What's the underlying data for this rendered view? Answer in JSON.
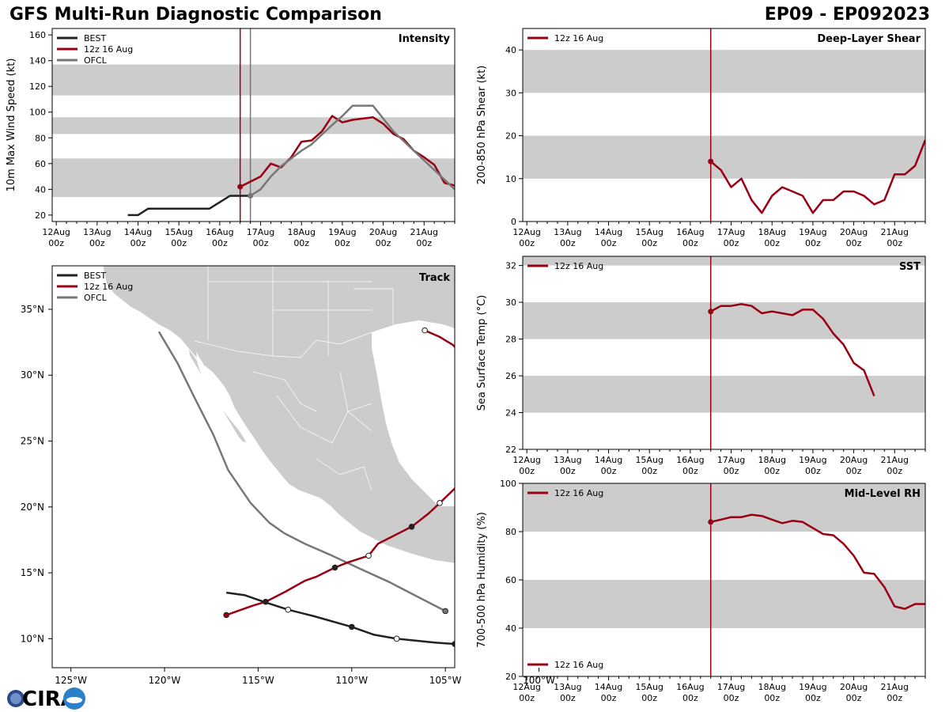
{
  "header": {
    "title_left": "GFS Multi-Run Diagnostic Comparison",
    "title_right": "EP09 - EP092023"
  },
  "logo": {
    "text": "CIRA"
  },
  "colors": {
    "best": "#222222",
    "run": "#990011",
    "ofcl": "#777777",
    "band": "#cccccc",
    "land": "#cccccc",
    "border": "#ffffff"
  },
  "time_axis": {
    "ticks": [
      {
        "top": "12Aug",
        "bot": "00z"
      },
      {
        "top": "13Aug",
        "bot": "00z"
      },
      {
        "top": "14Aug",
        "bot": "00z"
      },
      {
        "top": "15Aug",
        "bot": "00z"
      },
      {
        "top": "16Aug",
        "bot": "00z"
      },
      {
        "top": "17Aug",
        "bot": "00z"
      },
      {
        "top": "18Aug",
        "bot": "00z"
      },
      {
        "top": "19Aug",
        "bot": "00z"
      },
      {
        "top": "20Aug",
        "bot": "00z"
      },
      {
        "top": "21Aug",
        "bot": "00z"
      }
    ],
    "xlim_days": [
      -0.1,
      9.75
    ]
  },
  "chart_data": [
    {
      "id": "intensity",
      "type": "line",
      "title": "Intensity",
      "ylabel": "10m Max Wind Speed (kt)",
      "ylim": [
        15,
        165
      ],
      "yticks": [
        20,
        40,
        60,
        80,
        100,
        120,
        140,
        160
      ],
      "bands": [
        [
          34,
          64
        ],
        [
          83,
          96
        ],
        [
          113,
          137
        ]
      ],
      "vlines": [
        {
          "x": 4.5,
          "series": "run"
        },
        {
          "x": 4.75,
          "series": "ofcl"
        }
      ],
      "legend": [
        "BEST",
        "12z 16 Aug",
        "OFCL"
      ],
      "series": [
        {
          "name": "BEST",
          "key": "best",
          "start_marker": false,
          "x": [
            1.75,
            2,
            2.25,
            2.5,
            2.75,
            3,
            3.25,
            3.5,
            3.75,
            4,
            4.25,
            4.5,
            4.75
          ],
          "y": [
            20,
            20,
            25,
            25,
            25,
            25,
            25,
            25,
            25,
            30,
            35,
            35,
            35
          ]
        },
        {
          "name": "12z 16 Aug",
          "key": "run",
          "start_marker": true,
          "x": [
            4.5,
            4.75,
            5,
            5.25,
            5.5,
            5.75,
            6,
            6.25,
            6.5,
            6.75,
            7,
            7.25,
            7.5,
            7.75,
            8,
            8.25,
            8.5,
            8.75,
            9,
            9.25,
            9.5,
            9.75
          ],
          "y": [
            42,
            46,
            50,
            60,
            57,
            65,
            77,
            78,
            85,
            97,
            92,
            94,
            95,
            96,
            91,
            83,
            79,
            70,
            65,
            59,
            45,
            43
          ]
        },
        {
          "name": "OFCL",
          "key": "ofcl",
          "start_marker": true,
          "x": [
            4.75,
            5,
            5.25,
            5.5,
            6,
            6.25,
            6.75,
            7,
            7.25,
            7.75,
            8,
            8.25,
            8.75,
            9.25,
            9.75
          ],
          "y": [
            35,
            40,
            50,
            58,
            70,
            75,
            90,
            97,
            105,
            105,
            95,
            85,
            70,
            55,
            40
          ]
        }
      ]
    },
    {
      "id": "shear",
      "type": "line",
      "title": "Deep-Layer Shear",
      "ylabel": "200-850 hPa Shear (kt)",
      "ylim": [
        0,
        45
      ],
      "yticks": [
        0,
        10,
        20,
        30,
        40
      ],
      "bands": [
        [
          10,
          20
        ],
        [
          30,
          40
        ]
      ],
      "vlines": [
        {
          "x": 4.5,
          "series": "run"
        }
      ],
      "legend": [
        "12z 16 Aug"
      ],
      "series": [
        {
          "name": "12z 16 Aug",
          "key": "run",
          "start_marker": true,
          "x": [
            4.5,
            4.75,
            5,
            5.25,
            5.5,
            5.75,
            6,
            6.25,
            6.5,
            6.75,
            7,
            7.25,
            7.5,
            7.75,
            8,
            8.25,
            8.5,
            8.75,
            9,
            9.25,
            9.5,
            9.75
          ],
          "y": [
            14,
            12,
            8,
            10,
            5,
            2,
            6,
            8,
            7,
            6,
            2,
            5,
            5,
            7,
            7,
            6,
            4,
            5,
            11,
            11,
            13,
            19
          ]
        }
      ]
    },
    {
      "id": "sst",
      "type": "line",
      "title": "SST",
      "ylabel": "Sea Surface Temp (°C)",
      "ylim": [
        22,
        32.5
      ],
      "yticks": [
        22,
        24,
        26,
        28,
        30,
        32
      ],
      "bands": [
        [
          24,
          26
        ],
        [
          28,
          30
        ],
        [
          32,
          32.5
        ]
      ],
      "vlines": [
        {
          "x": 4.5,
          "series": "run"
        }
      ],
      "legend": [
        "12z 16 Aug"
      ],
      "series": [
        {
          "name": "12z 16 Aug",
          "key": "run",
          "start_marker": true,
          "x": [
            4.5,
            4.75,
            5,
            5.25,
            5.5,
            5.75,
            6,
            6.25,
            6.5,
            6.75,
            7,
            7.25,
            7.5,
            7.75,
            8,
            8.25,
            8.5
          ],
          "y": [
            29.5,
            29.8,
            29.8,
            29.9,
            29.8,
            29.4,
            29.5,
            29.4,
            29.3,
            29.6,
            29.6,
            29.1,
            28.3,
            27.7,
            26.7,
            26.3,
            24.9
          ]
        }
      ]
    },
    {
      "id": "rh",
      "type": "line",
      "title": "Mid-Level RH",
      "ylabel": "700-500 hPa Humidity (%)",
      "ylim": [
        20,
        100
      ],
      "yticks": [
        20,
        40,
        60,
        80,
        100
      ],
      "bands": [
        [
          40,
          60
        ],
        [
          80,
          100
        ]
      ],
      "vlines": [
        {
          "x": 4.5,
          "series": "run"
        }
      ],
      "legend": [
        "12z 16 Aug"
      ],
      "series": [
        {
          "name": "12z 16 Aug",
          "key": "run",
          "start_marker": true,
          "x": [
            4.5,
            4.75,
            5,
            5.25,
            5.5,
            5.75,
            6,
            6.25,
            6.5,
            6.75,
            7,
            7.25,
            7.5,
            7.75,
            8,
            8.25,
            8.5,
            8.75,
            9,
            9.25,
            9.5,
            9.75
          ],
          "y": [
            84,
            85,
            86,
            86,
            87,
            86.5,
            85,
            83.5,
            84.5,
            84,
            81.5,
            79,
            78.5,
            75,
            70,
            63,
            62.5,
            57,
            49,
            48,
            50,
            50
          ]
        }
      ]
    },
    {
      "id": "track",
      "type": "map",
      "title": "Track",
      "xlim": [
        -126,
        -104.5
      ],
      "ylim": [
        7.8,
        38.3
      ],
      "xticks": [
        -125,
        -120,
        -115,
        -110,
        -105,
        -100
      ],
      "xtick_labels": [
        "125°W",
        "120°W",
        "115°W",
        "110°W",
        "105°W",
        "100°W"
      ],
      "yticks": [
        10,
        15,
        20,
        25,
        30,
        35
      ],
      "ytick_labels": [
        "10°N",
        "15°N",
        "20°N",
        "25°N",
        "30°N",
        "35°N"
      ],
      "legend": [
        "BEST",
        "12z 16 Aug",
        "OFCL"
      ],
      "series": [
        {
          "name": "BEST",
          "key": "best",
          "lon": [
            -104.5,
            -105.5,
            -107.6,
            -108.8,
            -110,
            -112,
            -113.4,
            -114.7,
            -115.7,
            -116.7
          ],
          "lat": [
            9.6,
            9.7,
            10.0,
            10.3,
            10.9,
            11.7,
            12.2,
            12.8,
            13.3,
            13.5
          ],
          "markers": [
            {
              "i": 0,
              "fill": true
            },
            {
              "i": 2,
              "fill": false
            },
            {
              "i": 4,
              "fill": true
            },
            {
              "i": 6,
              "fill": false
            }
          ]
        },
        {
          "name": "12z 16 Aug",
          "key": "run",
          "lon": [
            -116.7,
            -115.3,
            -114.6,
            -113.5,
            -112.5,
            -111.9,
            -110.9,
            -110.2,
            -109.1,
            -108.6,
            -106.8,
            -105.9,
            -105.3,
            -104.5,
            -103.6,
            -102.9,
            -102.6,
            -102.3,
            -102.4,
            -102.8,
            -102.9,
            -103.2,
            -103.4,
            -103.3,
            -103.7,
            -104.2,
            -104.6,
            -105.3,
            -106.1
          ],
          "lat": [
            11.8,
            12.5,
            12.8,
            13.6,
            14.4,
            14.7,
            15.4,
            15.8,
            16.3,
            17.2,
            18.5,
            19.5,
            20.3,
            21.4,
            22.5,
            23.7,
            24.9,
            25.8,
            26.4,
            27.3,
            28.1,
            29.1,
            29.7,
            30.3,
            31.0,
            31.7,
            32.3,
            32.9,
            33.4
          ],
          "markers": [
            {
              "i": 0,
              "fill": true
            },
            {
              "i": 2,
              "fill": true
            },
            {
              "i": 6,
              "fill": true
            },
            {
              "i": 8,
              "fill": false
            },
            {
              "i": 10,
              "fill": true
            },
            {
              "i": 12,
              "fill": false
            },
            {
              "i": 14,
              "fill": true
            },
            {
              "i": 16,
              "fill": false
            },
            {
              "i": 20,
              "fill": true
            },
            {
              "i": 28,
              "fill": false
            }
          ]
        },
        {
          "name": "OFCL",
          "key": "ofcl",
          "lon": [
            -105.0,
            -106.5,
            -108.0,
            -109.7,
            -111.2,
            -112.5,
            -113.6,
            -114.4,
            -115.4,
            -116.6,
            -117.4,
            -118.4,
            -119.3,
            -120.3
          ],
          "lat": [
            12.1,
            13.2,
            14.3,
            15.4,
            16.4,
            17.2,
            18.0,
            18.8,
            20.3,
            22.8,
            25.5,
            28.3,
            30.9,
            33.3
          ],
          "markers": [
            {
              "i": 0,
              "fill": true
            }
          ]
        }
      ]
    }
  ]
}
